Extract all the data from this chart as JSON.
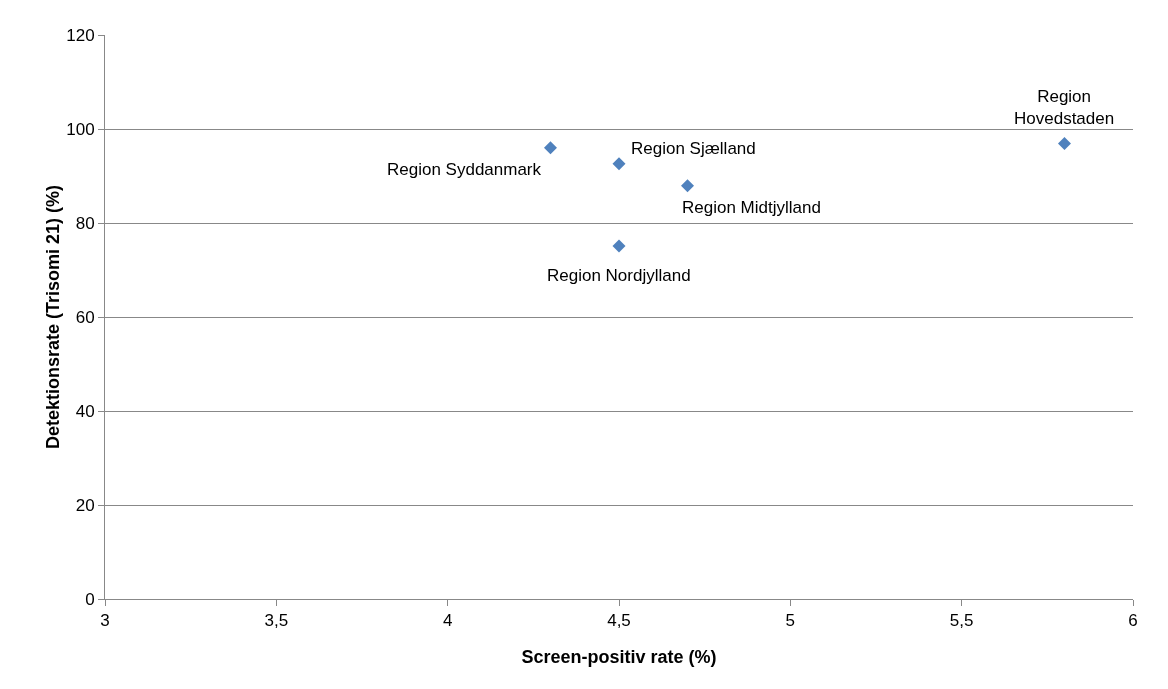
{
  "chart_data": {
    "type": "scatter",
    "xlabel": "Screen-positiv rate (%)",
    "ylabel": "Detektionsrate (Trisomi 21) (%)",
    "x": [
      4.3,
      4.5,
      4.7,
      4.5,
      5.8
    ],
    "series": [
      {
        "color": "#4f81bd",
        "values": [
          96,
          92.6,
          87.9,
          75.1,
          96.9
        ]
      }
    ],
    "xlim": [
      3,
      6
    ],
    "xticks": [
      3,
      {
        "value": 3.5,
        "label": "3,5"
      },
      4,
      {
        "value": 4.5,
        "label": "4,5"
      },
      5,
      {
        "value": 5.5,
        "label": "5,5"
      },
      6
    ],
    "ylim": [
      0,
      120
    ],
    "yticks": [
      0,
      20,
      40,
      60,
      80,
      100,
      120
    ],
    "grid": "y",
    "marker": "diamond",
    "annotations": [
      {
        "text": "Region Syddanmark",
        "x": 4.3,
        "y": 96
      },
      {
        "text": "Region Sjælland",
        "x": 4.5,
        "y": 92.6
      },
      {
        "text": "Region Midtjylland",
        "x": 4.7,
        "y": 87.9
      },
      {
        "text": "Region Nordjylland",
        "x": 4.5,
        "y": 75.1
      },
      {
        "text": "Region Hovedstaden",
        "x": 5.8,
        "y": 96.9
      }
    ]
  }
}
